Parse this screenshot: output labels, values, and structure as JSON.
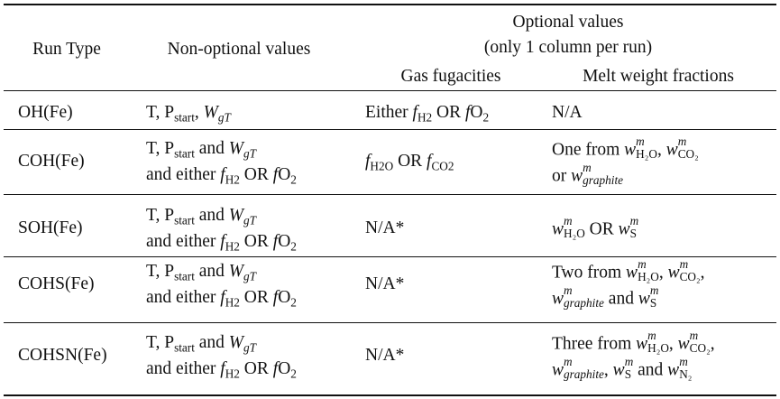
{
  "header": {
    "run_type": "Run Type",
    "non_optional": "Non-optional values",
    "optional_line1": "Optional values",
    "optional_line2": "(only 1 column per run)",
    "gas_fugacities": "Gas fugacities",
    "melt_weight_fractions": "Melt weight fractions"
  },
  "rows": [
    {
      "run_type": "OH(Fe)",
      "non_optional": [
        [
          [
            "t",
            "T, P"
          ],
          [
            "sub",
            "start"
          ],
          [
            "t",
            ", "
          ],
          [
            "i",
            "W"
          ],
          [
            "sub",
            "gT",
            true
          ]
        ]
      ],
      "gas": [
        [
          [
            "t",
            "Either "
          ],
          [
            "i",
            "f"
          ],
          [
            "sub",
            "H"
          ],
          [
            "sub2",
            "2"
          ],
          [
            "t",
            " OR "
          ],
          [
            "i",
            "f"
          ],
          [
            "t",
            "O"
          ],
          [
            "sub",
            "2"
          ]
        ]
      ],
      "melt": [
        [
          [
            "t",
            "N/A"
          ]
        ]
      ]
    },
    {
      "run_type": "COH(Fe)",
      "non_optional": [
        [
          [
            "t",
            "T, P"
          ],
          [
            "sub",
            "start"
          ],
          [
            "t",
            " and "
          ],
          [
            "i",
            "W"
          ],
          [
            "sub",
            "gT",
            true
          ]
        ],
        [
          [
            "t",
            "and either "
          ],
          [
            "i",
            "f"
          ],
          [
            "sub",
            "H"
          ],
          [
            "sub2",
            "2"
          ],
          [
            "t",
            " OR "
          ],
          [
            "i",
            "f"
          ],
          [
            "t",
            "O"
          ],
          [
            "sub",
            "2"
          ]
        ]
      ],
      "gas": [
        [
          [
            "i",
            "f"
          ],
          [
            "sub",
            "H"
          ],
          [
            "sub2",
            "2"
          ],
          [
            "sub",
            "O"
          ],
          [
            "t",
            " OR "
          ],
          [
            "i",
            "f"
          ],
          [
            "sub",
            "CO"
          ],
          [
            "sub2",
            "2"
          ]
        ]
      ],
      "melt": [
        [
          [
            "t",
            "One from "
          ],
          [
            "w",
            "m",
            "H₂O"
          ],
          [
            "t",
            ", "
          ],
          [
            "w",
            "m",
            "CO₂"
          ]
        ],
        [
          [
            "t",
            "or "
          ],
          [
            "w",
            "m",
            "graphite",
            true
          ]
        ]
      ]
    },
    {
      "run_type": "SOH(Fe)",
      "non_optional": [
        [
          [
            "t",
            "T, P"
          ],
          [
            "sub",
            "start"
          ],
          [
            "t",
            " and "
          ],
          [
            "i",
            "W"
          ],
          [
            "sub",
            "gT",
            true
          ]
        ],
        [
          [
            "t",
            "and either "
          ],
          [
            "i",
            "f"
          ],
          [
            "sub",
            "H"
          ],
          [
            "sub2",
            "2"
          ],
          [
            "t",
            " OR "
          ],
          [
            "i",
            "f"
          ],
          [
            "t",
            "O"
          ],
          [
            "sub",
            "2"
          ]
        ]
      ],
      "gas": [
        [
          [
            "t",
            "N/A*"
          ]
        ]
      ],
      "melt": [
        [
          [
            "w",
            "m",
            "H₂O"
          ],
          [
            "t",
            " OR "
          ],
          [
            "w",
            "m",
            "S"
          ]
        ]
      ]
    },
    {
      "run_type": "COHS(Fe)",
      "non_optional": [
        [
          [
            "t",
            "T, P"
          ],
          [
            "sub",
            "start"
          ],
          [
            "t",
            " and "
          ],
          [
            "i",
            "W"
          ],
          [
            "sub",
            "gT",
            true
          ]
        ],
        [
          [
            "t",
            "and either "
          ],
          [
            "i",
            "f"
          ],
          [
            "sub",
            "H"
          ],
          [
            "sub2",
            "2"
          ],
          [
            "t",
            " OR "
          ],
          [
            "i",
            "f"
          ],
          [
            "t",
            "O"
          ],
          [
            "sub",
            "2"
          ]
        ]
      ],
      "gas": [
        [
          [
            "t",
            "N/A*"
          ]
        ]
      ],
      "melt": [
        [
          [
            "t",
            "Two from "
          ],
          [
            "w",
            "m",
            "H₂O"
          ],
          [
            "t",
            ", "
          ],
          [
            "w",
            "m",
            "CO₂"
          ],
          [
            "t",
            ","
          ]
        ],
        [
          [
            "w",
            "m",
            "graphite",
            true
          ],
          [
            "t",
            " and "
          ],
          [
            "w",
            "m",
            "S"
          ]
        ]
      ]
    },
    {
      "run_type": "COHSN(Fe)",
      "non_optional": [
        [
          [
            "t",
            "T, P"
          ],
          [
            "sub",
            "start"
          ],
          [
            "t",
            " and "
          ],
          [
            "i",
            "W"
          ],
          [
            "sub",
            "gT",
            true
          ]
        ],
        [
          [
            "t",
            "and either "
          ],
          [
            "i",
            "f"
          ],
          [
            "sub",
            "H"
          ],
          [
            "sub2",
            "2"
          ],
          [
            "t",
            " OR "
          ],
          [
            "i",
            "f"
          ],
          [
            "t",
            "O"
          ],
          [
            "sub",
            "2"
          ]
        ]
      ],
      "gas": [
        [
          [
            "t",
            "N/A*"
          ]
        ]
      ],
      "melt": [
        [
          [
            "t",
            "Three from "
          ],
          [
            "w",
            "m",
            "H₂O"
          ],
          [
            "t",
            ", "
          ],
          [
            "w",
            "m",
            "CO₂"
          ],
          [
            "t",
            ","
          ]
        ],
        [
          [
            "w",
            "m",
            "graphite",
            true
          ],
          [
            "t",
            ", "
          ],
          [
            "w",
            "m",
            "S"
          ],
          [
            "t",
            " and "
          ],
          [
            "w",
            "m",
            "N₂"
          ]
        ]
      ]
    }
  ]
}
